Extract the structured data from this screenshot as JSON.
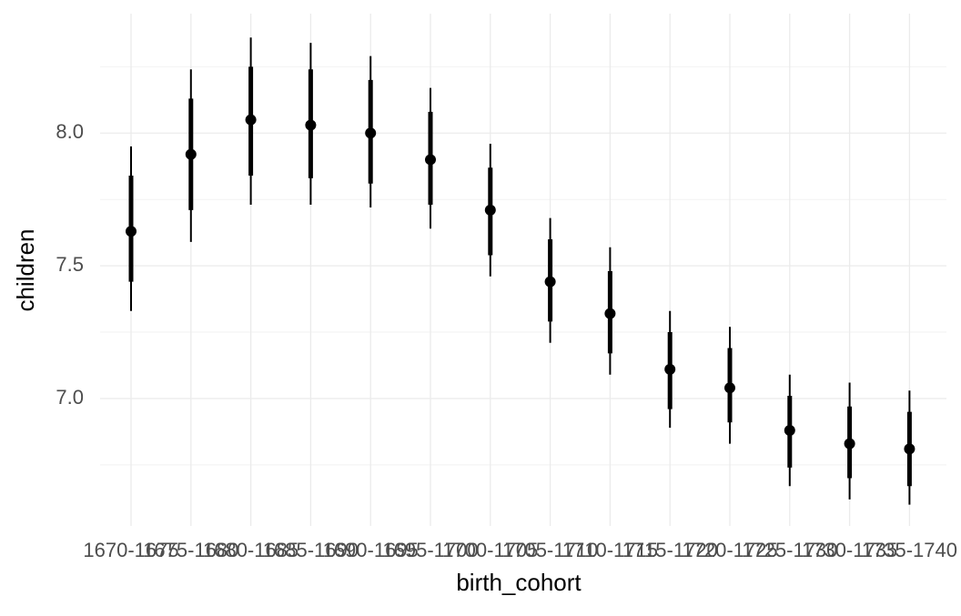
{
  "chart_data": {
    "type": "pointinterval",
    "x_label": "birth_cohort",
    "y_label": "children",
    "categories": [
      "1670-1675",
      "1675-1680",
      "1680-1685",
      "1685-1690",
      "1690-1695",
      "1695-1700",
      "1700-1705",
      "1705-1710",
      "1710-1715",
      "1715-1720",
      "1720-1725",
      "1725-1730",
      "1730-1735",
      "1735-1740"
    ],
    "values": [
      7.63,
      7.92,
      8.05,
      8.03,
      8.0,
      7.9,
      7.71,
      7.44,
      7.32,
      7.11,
      7.04,
      6.88,
      6.83,
      6.81
    ],
    "lower_inner": [
      7.44,
      7.71,
      7.84,
      7.83,
      7.81,
      7.73,
      7.54,
      7.29,
      7.17,
      6.96,
      6.91,
      6.74,
      6.7,
      6.67
    ],
    "upper_inner": [
      7.84,
      8.13,
      8.25,
      8.24,
      8.2,
      8.08,
      7.87,
      7.6,
      7.48,
      7.25,
      7.19,
      7.01,
      6.97,
      6.95
    ],
    "lower_outer": [
      7.33,
      7.59,
      7.73,
      7.73,
      7.72,
      7.64,
      7.46,
      7.21,
      7.09,
      6.89,
      6.83,
      6.67,
      6.62,
      6.6
    ],
    "upper_outer": [
      7.95,
      8.24,
      8.36,
      8.34,
      8.29,
      8.17,
      7.96,
      7.68,
      7.57,
      7.33,
      7.27,
      7.09,
      7.06,
      7.03
    ],
    "color": "#000000",
    "ylim": [
      6.52,
      8.45
    ],
    "yticks": [
      {
        "value": 7,
        "label": "7.0"
      },
      {
        "value": 7.5,
        "label": "7.5"
      },
      {
        "value": 8,
        "label": "8.0"
      }
    ],
    "y_minor_grid": [
      6.75,
      7.25,
      7.75,
      8.25
    ],
    "grid": true
  }
}
